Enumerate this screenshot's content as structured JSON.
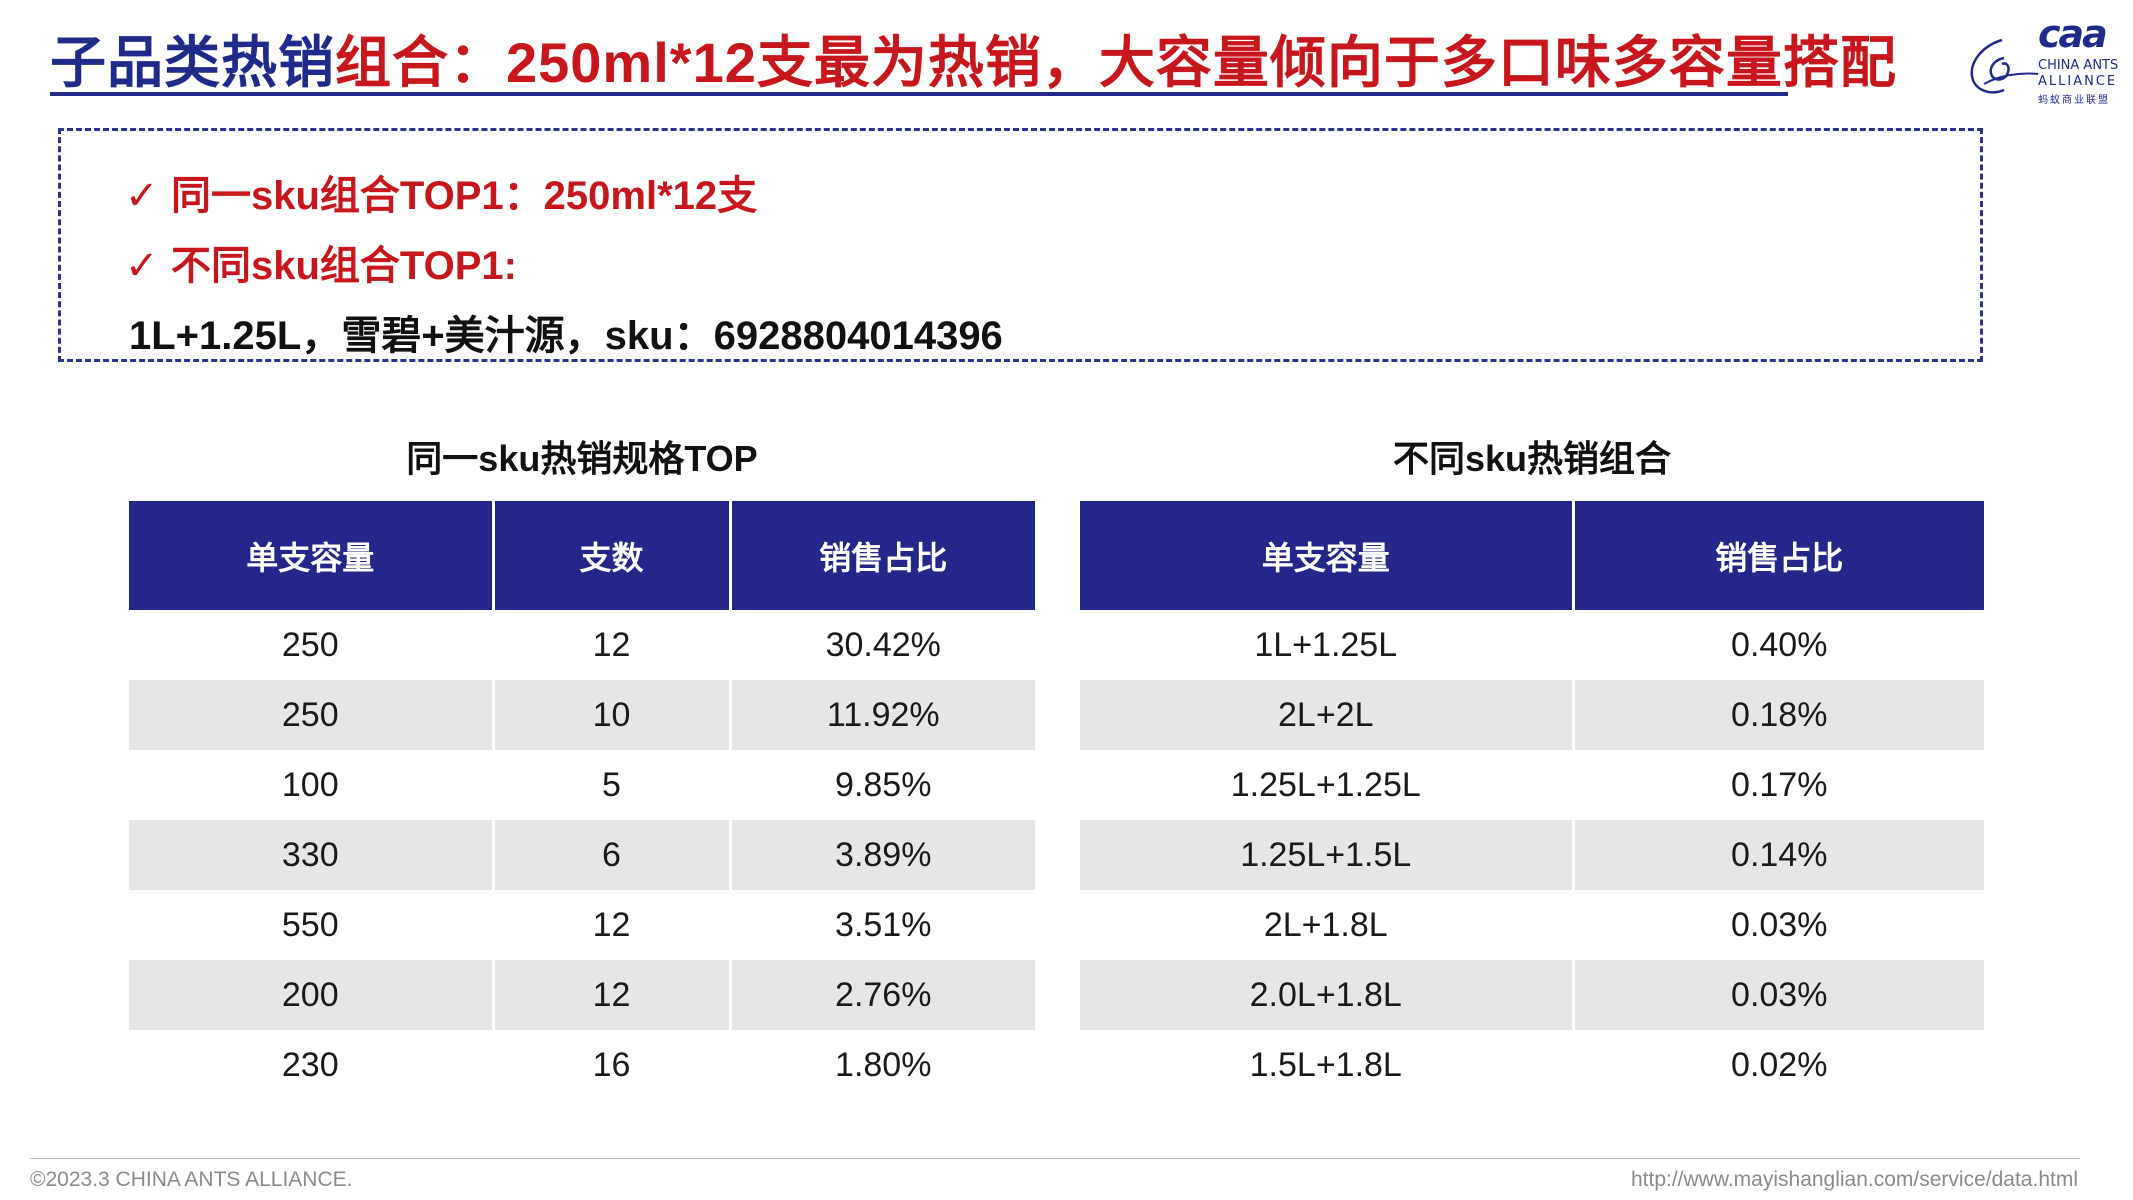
{
  "header": {
    "title_part1": "子品类热销",
    "title_part2": "组合：250ml*12支最为热销，大容量倾向于多口味多容量搭配"
  },
  "logo": {
    "mark": "caa",
    "line1": "CHINA ANTS",
    "line2": "ALLIANCE",
    "line3": "蚂蚁商业联盟",
    "icon": "ant-alliance-logo-icon"
  },
  "summary": {
    "check_icon": "✓",
    "line1": "同一sku组合TOP1：250ml*12支",
    "line2": "不同sku组合TOP1:",
    "line3": "1L+1.25L，雪碧+美汁源，sku：6928804014396"
  },
  "table_same": {
    "title": "同一sku热销规格TOP",
    "headers": [
      "单支容量",
      "支数",
      "销售占比"
    ],
    "rows": [
      [
        "250",
        "12",
        "30.42%"
      ],
      [
        "250",
        "10",
        "11.92%"
      ],
      [
        "100",
        "5",
        "9.85%"
      ],
      [
        "330",
        "6",
        "3.89%"
      ],
      [
        "550",
        "12",
        "3.51%"
      ],
      [
        "200",
        "12",
        "2.76%"
      ],
      [
        "230",
        "16",
        "1.80%"
      ]
    ]
  },
  "table_diff": {
    "title": "不同sku热销组合",
    "headers": [
      "单支容量",
      "销售占比"
    ],
    "rows": [
      [
        "1L+1.25L",
        "0.40%"
      ],
      [
        "2L+2L",
        "0.18%"
      ],
      [
        "1.25L+1.25L",
        "0.17%"
      ],
      [
        "1.25L+1.5L",
        "0.14%"
      ],
      [
        "2L+1.8L",
        "0.03%"
      ],
      [
        "2.0L+1.8L",
        "0.03%"
      ],
      [
        "1.5L+1.8L",
        "0.02%"
      ]
    ]
  },
  "footer": {
    "copyright": "©2023.3 CHINA ANTS ALLIANCE.",
    "url": "http://www.mayishanglian.com/service/data.html"
  },
  "colors": {
    "primary_blue": "#1f2a8a",
    "header_blue": "#24268a",
    "accent_red": "#c8161d",
    "row_alt_gray": "#e6e6e6"
  }
}
